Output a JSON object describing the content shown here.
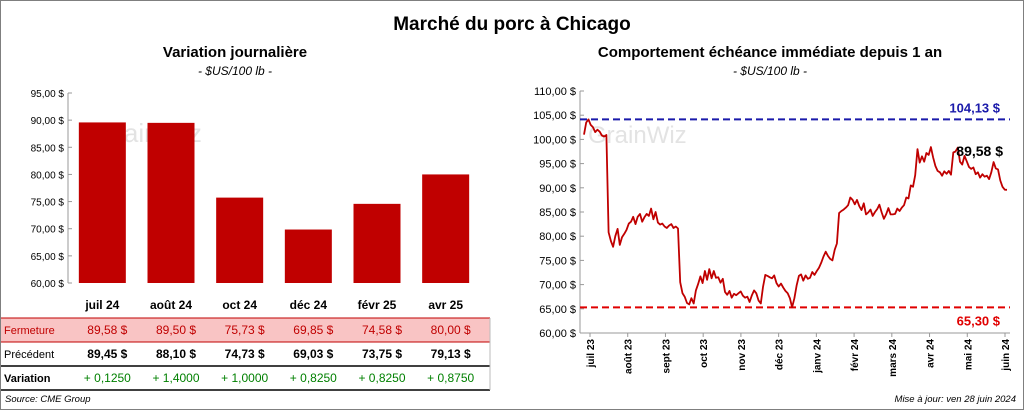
{
  "title": "Marché du porc à Chicago",
  "source": "Source: CME Group",
  "updated": "Mise à jour: ven 28 juin 2024",
  "watermark": "GrainWiz",
  "colors": {
    "bar": "#c00000",
    "line": "#c00000",
    "max": "#1a1aaa",
    "min": "#e00000",
    "band": "#f9c4c4",
    "positive": "#008000"
  },
  "chart_data": [
    {
      "type": "bar",
      "title": "Variation  journalière",
      "subtitle": "- $US/100 lb -",
      "ylim": [
        60,
        95
      ],
      "yticks": [
        "60,00 $",
        "65,00 $",
        "70,00 $",
        "75,00 $",
        "80,00 $",
        "85,00 $",
        "90,00 $",
        "95,00 $"
      ],
      "ytick_values": [
        60,
        65,
        70,
        75,
        80,
        85,
        90,
        95
      ],
      "categories": [
        "juil 24",
        "août 24",
        "oct 24",
        "déc 24",
        "févr 25",
        "avr 25"
      ],
      "values": [
        89.58,
        89.5,
        75.73,
        69.85,
        74.58,
        80.0
      ],
      "table": {
        "rows": [
          {
            "label": "Fermeture",
            "cells": [
              "89,58  $",
              "89,50  $",
              "75,73  $",
              "69,85  $",
              "74,58  $",
              "80,00  $"
            ]
          },
          {
            "label": "Précédent",
            "cells": [
              "89,45  $",
              "88,10  $",
              "74,73  $",
              "69,03  $",
              "73,75  $",
              "79,13  $"
            ]
          },
          {
            "label": "Variation",
            "cells": [
              "+ 0,1250",
              "+ 1,4000",
              "+ 1,0000",
              "+ 0,8250",
              "+ 0,8250",
              "+ 0,8750"
            ]
          }
        ]
      }
    },
    {
      "type": "line",
      "title": "Comportement  échéance immédiate depuis 1 an",
      "subtitle": "- $US/100 lb -",
      "ylim": [
        60,
        110
      ],
      "yticks": [
        "60,00 $",
        "65,00 $",
        "70,00 $",
        "75,00 $",
        "80,00 $",
        "85,00 $",
        "90,00 $",
        "95,00 $",
        "100,00 $",
        "105,00 $",
        "110,00 $"
      ],
      "ytick_values": [
        60,
        65,
        70,
        75,
        80,
        85,
        90,
        95,
        100,
        105,
        110
      ],
      "xticks": [
        "juil 23",
        "août 23",
        "sept 23",
        "oct 23",
        "nov 23",
        "déc 23",
        "janv 24",
        "févr 24",
        "mars 24",
        "avr 24",
        "mai 24",
        "juin 24"
      ],
      "max": {
        "value": 104.13,
        "label": "104,13 $"
      },
      "min": {
        "value": 65.3,
        "label": "65,30 $"
      },
      "last": {
        "value": 89.58,
        "label": "89,58 $"
      },
      "series": [
        {
          "values": [
            101,
            103.5,
            104.13,
            103,
            102.5,
            101.5,
            102,
            101.6,
            100.8,
            100.6,
            100.9,
            80.8,
            79,
            77.8,
            80,
            81.5,
            78.2,
            79.8,
            80.5,
            81.3,
            82.6,
            83,
            84,
            82.5,
            84,
            84.6,
            83,
            83.9,
            84.6,
            84.2,
            85.7,
            83.5,
            85,
            82.8,
            82.4,
            82.6,
            82,
            81.7,
            82.2,
            82.5,
            81.7,
            82,
            81.6,
            70.5,
            68.2,
            67.5,
            66.2,
            65.9,
            67.2,
            66.1,
            68.8,
            70.1,
            71.7,
            70.3,
            72.8,
            71,
            73.2,
            71.3,
            72.8,
            71.4,
            71.5,
            70.4,
            71.2,
            68.5,
            67.9,
            68.7,
            67.3,
            68.1,
            67.8,
            68.2,
            68.6,
            67.7,
            67.3,
            67.5,
            66.4,
            67.8,
            68.8,
            68.2,
            66.7,
            66.1,
            69.5,
            72,
            71.8,
            71.5,
            71.3,
            71.9,
            70.3,
            69.6,
            70.2,
            69.4,
            68.7,
            68.2,
            67.2,
            65.3,
            67.2,
            69.8,
            71.8,
            72.1,
            70.8,
            71.9,
            71.2,
            71.4,
            72.6,
            72,
            72.8,
            73.5,
            74.5,
            75.8,
            76.8,
            75.9,
            75.3,
            75,
            77.2,
            78.5,
            84.8,
            85.2,
            85.5,
            85.9,
            86.4,
            88,
            87.5,
            86.6,
            87.5,
            86.2,
            85.4,
            86.8,
            84.5,
            84.9,
            85.5,
            84.2,
            85,
            85.6,
            86.5,
            84.9,
            83.6,
            84.5,
            85.8,
            84.5,
            84.5,
            84.6,
            85.7,
            85.2,
            85.9,
            86.4,
            88,
            87.8,
            90.5,
            90.2,
            92.6,
            98,
            95.2,
            96.5,
            95.4,
            97.2,
            96.8,
            98.4,
            96.3,
            94.5,
            93.5,
            93.2,
            92.5,
            93.4,
            92.9,
            93.5,
            92.7,
            97.3,
            97.5,
            98.3,
            95.4,
            94.8,
            96.6,
            95.5,
            94.3,
            93.9,
            94.2,
            92.8,
            93.2,
            92.1,
            92.8,
            92.3,
            92.5,
            91.8,
            93.2,
            95.3,
            94,
            93.8,
            91.5,
            90.2,
            89.6,
            89.58
          ]
        }
      ]
    }
  ]
}
